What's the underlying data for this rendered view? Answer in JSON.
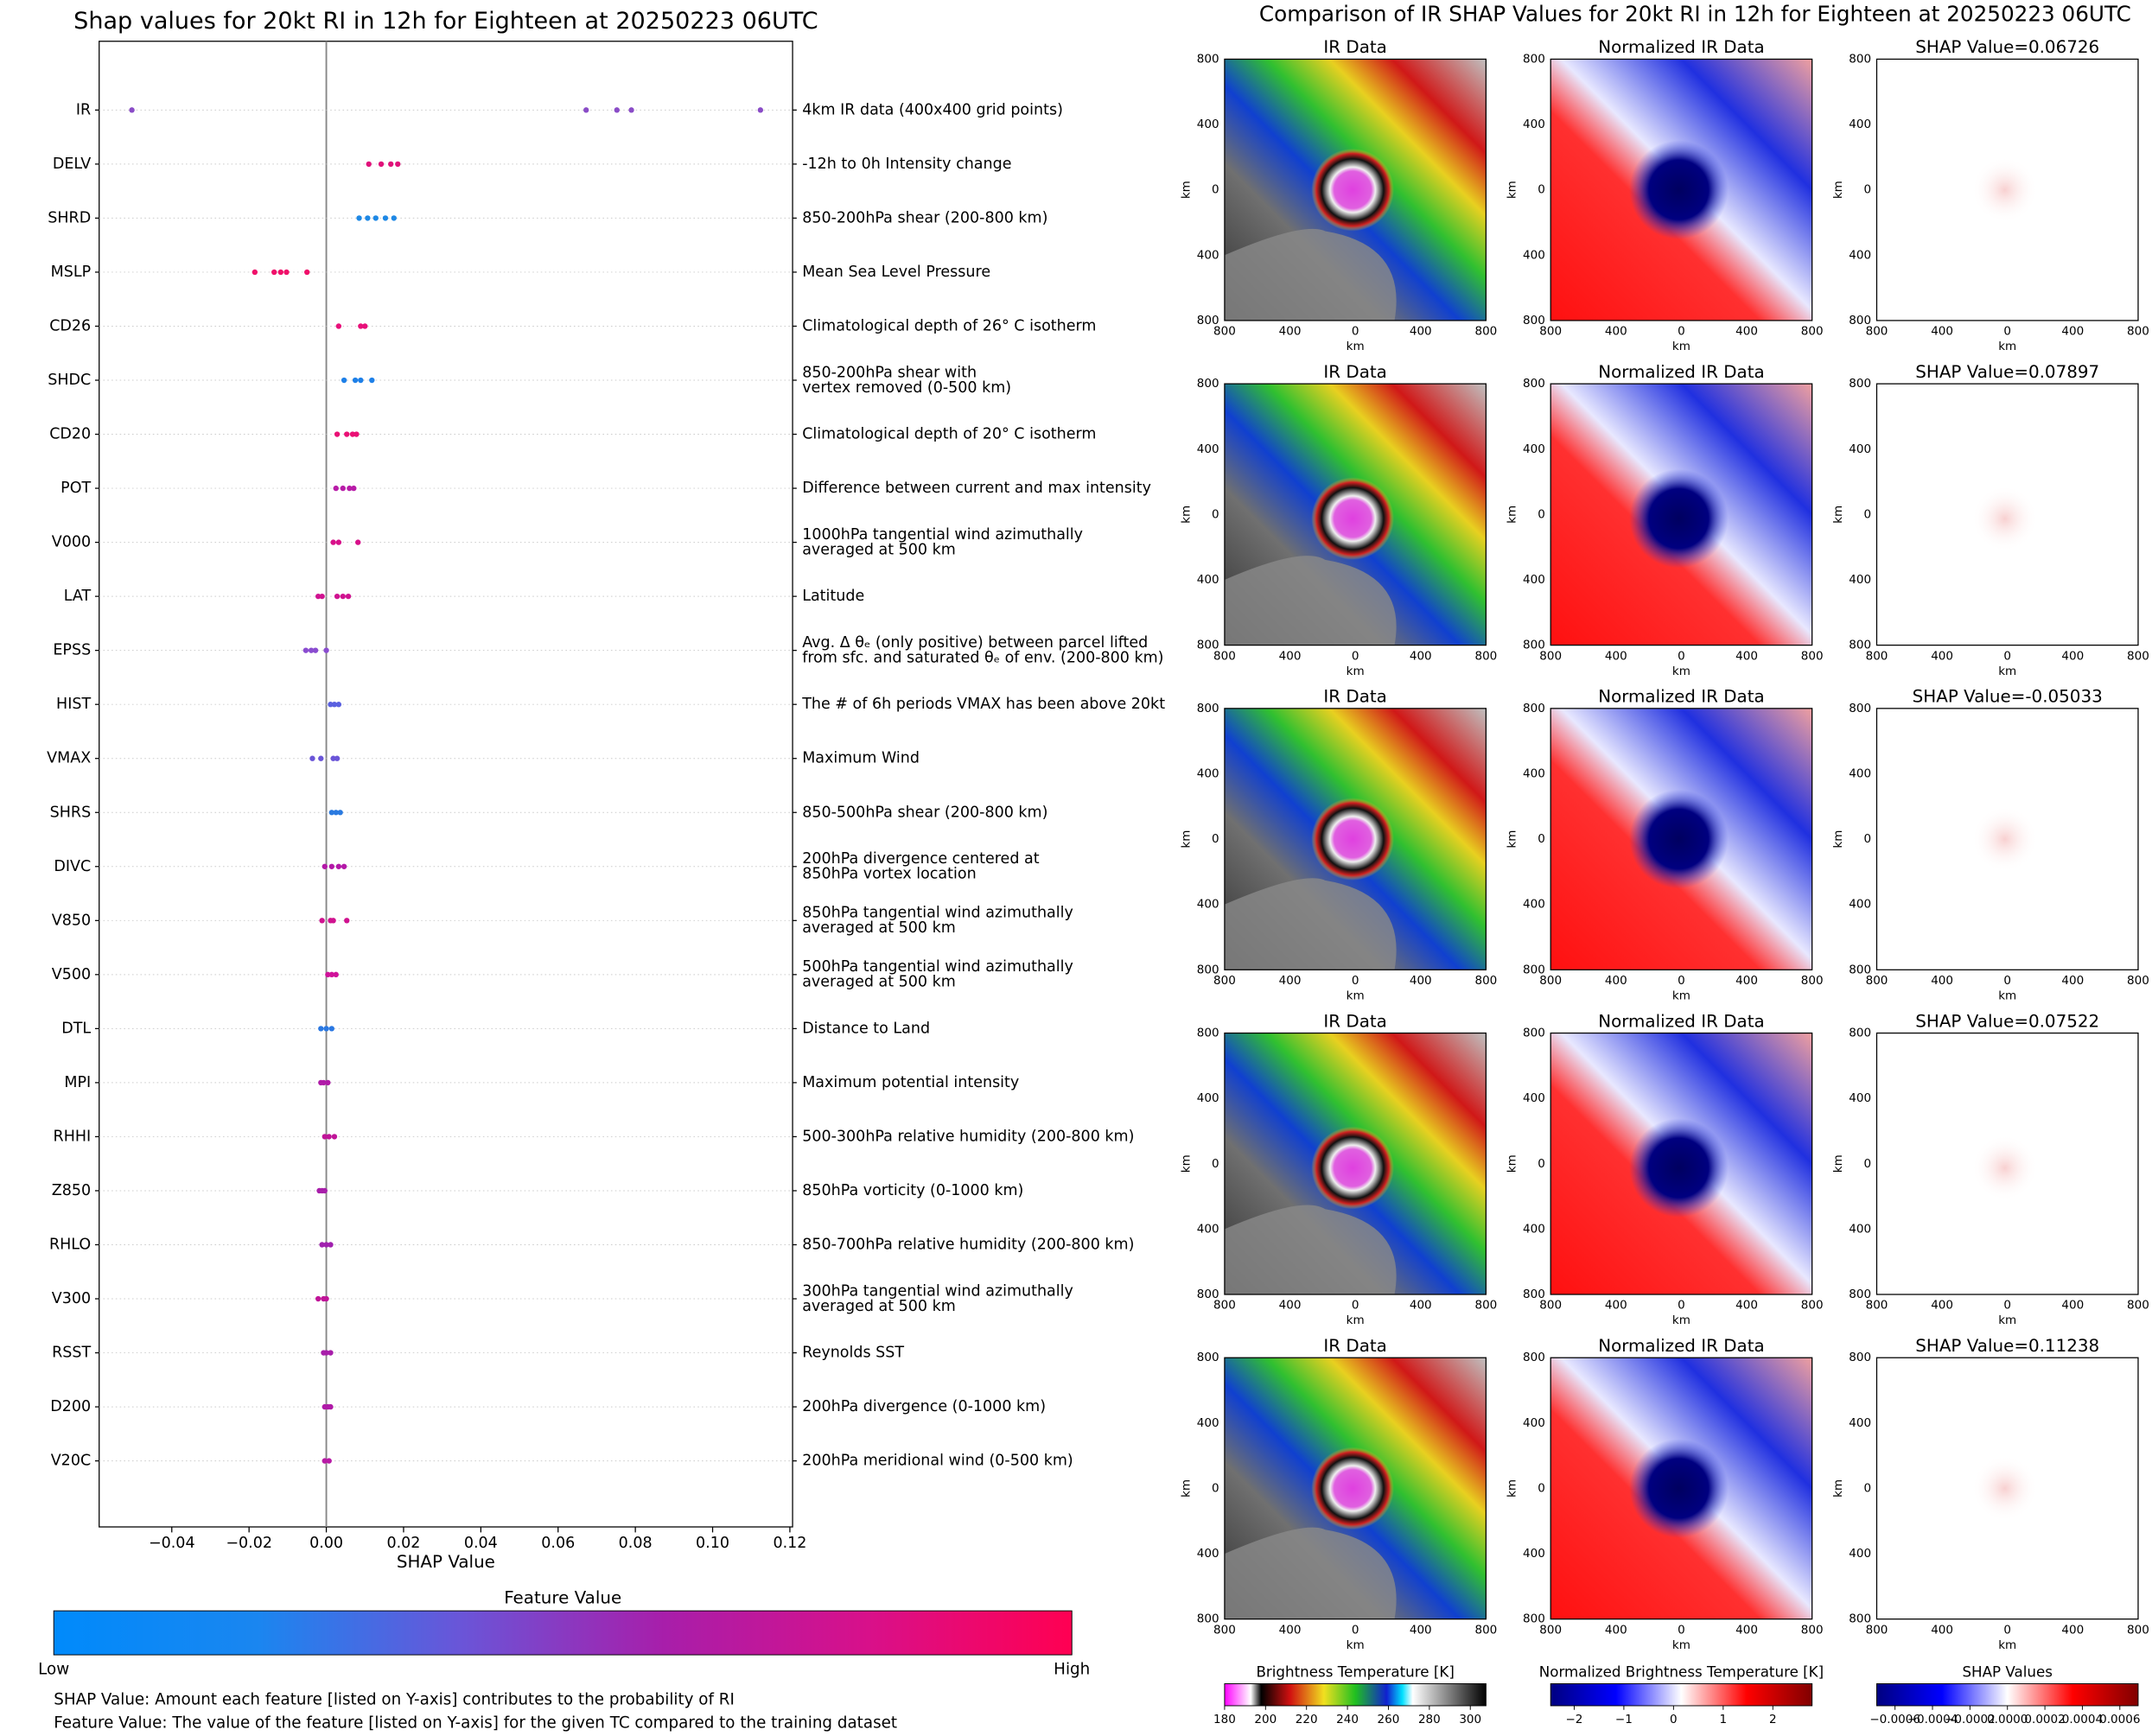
{
  "chart_data": {
    "type": "scatter",
    "title": "Shap values for 20kt RI in 12h for Eighteen at 20250223 06UTC",
    "x_label": "SHAP Value",
    "xlim": [
      -0.0588,
      0.1207
    ],
    "xticks": [
      {
        "value": -0.04,
        "label": "−0.04"
      },
      {
        "value": -0.02,
        "label": "−0.02"
      },
      {
        "value": 0,
        "label": "0.00"
      },
      0.02,
      0.04,
      0.06,
      0.08,
      {
        "value": 0.1,
        "label": "0.10"
      },
      0.12
    ],
    "zero_line": true,
    "series": [
      {
        "name": "IR",
        "description": [
          "4km IR data (400x400 grid points)"
        ],
        "color": "#8a4cc7",
        "values": [
          -0.05033,
          0.06726,
          0.07522,
          0.07897,
          0.11238
        ]
      },
      {
        "name": "DELV",
        "description": [
          "-12h to 0h Intensity change"
        ],
        "color": "#e0117a",
        "values": [
          0.011,
          0.0142,
          0.0167,
          0.0185
        ]
      },
      {
        "name": "SHRD",
        "description": [
          "850-200hPa shear (200-800 km)"
        ],
        "color": "#1e88e5",
        "values": [
          0.0085,
          0.0107,
          0.0128,
          0.0153,
          0.0175
        ]
      },
      {
        "name": "MSLP",
        "description": [
          "Mean Sea Level Pressure"
        ],
        "color": "#f0106a",
        "values": [
          -0.0185,
          -0.0135,
          -0.0118,
          -0.0103,
          -0.005
        ]
      },
      {
        "name": "CD26",
        "description": [
          "Climatological depth of 26° C isotherm"
        ],
        "color": "#e8107a",
        "values": [
          0.0032,
          0.0089,
          0.01
        ]
      },
      {
        "name": "SHDC",
        "description": [
          "850-200hPa shear with",
          "vertex removed (0-500 km)"
        ],
        "color": "#1e80e8",
        "values": [
          0.0046,
          0.0075,
          0.0089,
          0.0118
        ]
      },
      {
        "name": "CD20",
        "description": [
          "Climatological depth of 20° C isotherm"
        ],
        "color": "#ea1075",
        "values": [
          0.0028,
          0.0053,
          0.0068,
          0.0078
        ]
      },
      {
        "name": "POT",
        "description": [
          "Difference between current and max intensity"
        ],
        "color": "#b81ca8",
        "values": [
          0.0025,
          0.0043,
          0.006,
          0.0071
        ]
      },
      {
        "name": "V000",
        "description": [
          "1000hPa tangential wind azimuthally",
          "averaged at 500 km"
        ],
        "color": "#d8108a",
        "values": [
          0.0018,
          0.0032,
          0.0082
        ]
      },
      {
        "name": "LAT",
        "description": [
          "Latitude"
        ],
        "color": "#d01290",
        "values": [
          -0.0021,
          -0.0011,
          0.0028,
          0.0043,
          0.0057
        ]
      },
      {
        "name": "EPSS",
        "description": [
          "Avg. Δ θₑ (only positive) between parcel lifted",
          "from sfc. and saturated θₑ of env. (200-800 km)"
        ],
        "color": "#8a4cd0",
        "values": [
          -0.0053,
          -0.0039,
          -0.0028,
          0.0
        ]
      },
      {
        "name": "HIST",
        "description": [
          "The # of 6h periods VMAX has been above 20kt"
        ],
        "color": "#5a60e0",
        "values": [
          0.0011,
          0.0021,
          0.0032
        ]
      },
      {
        "name": "VMAX",
        "description": [
          "Maximum Wind"
        ],
        "color": "#6a55d8",
        "values": [
          -0.0036,
          -0.0014,
          0.0018,
          0.0028
        ]
      },
      {
        "name": "SHRS",
        "description": [
          "850-500hPa shear (200-800 km)"
        ],
        "color": "#2a7ae0",
        "values": [
          0.0014,
          0.0025,
          0.0036
        ]
      },
      {
        "name": "DIVC",
        "description": [
          "200hPa divergence centered at",
          "850hPa vortex location"
        ],
        "color": "#b418a8",
        "values": [
          -0.0004,
          0.0014,
          0.0032,
          0.0046
        ]
      },
      {
        "name": "V850",
        "description": [
          "850hPa tangential wind azimuthally",
          "averaged at 500 km"
        ],
        "color": "#d0128f",
        "values": [
          -0.0011,
          0.0011,
          0.0018,
          0.0053
        ]
      },
      {
        "name": "V500",
        "description": [
          "500hPa tangential wind azimuthally",
          "averaged at 500 km"
        ],
        "color": "#d0129a",
        "values": [
          0.0004,
          0.0014,
          0.0025
        ]
      },
      {
        "name": "DTL",
        "description": [
          "Distance to Land"
        ],
        "color": "#2a78e2",
        "values": [
          -0.0014,
          0.0,
          0.0014
        ]
      },
      {
        "name": "MPI",
        "description": [
          "Maximum potential intensity"
        ],
        "color": "#b01aa8",
        "values": [
          -0.0014,
          -0.0007,
          0.0004
        ]
      },
      {
        "name": "RHHI",
        "description": [
          "500-300hPa relative humidity (200-800 km)"
        ],
        "color": "#c01498",
        "values": [
          -0.0004,
          0.0007,
          0.0021
        ]
      },
      {
        "name": "Z850",
        "description": [
          "850hPa vorticity (0-1000 km)"
        ],
        "color": "#a81eaa",
        "values": [
          -0.0018,
          -0.0011,
          -0.0004
        ]
      },
      {
        "name": "RHLO",
        "description": [
          "850-700hPa relative humidity (200-800 km)"
        ],
        "color": "#a020ae",
        "values": [
          -0.0011,
          0.0,
          0.0011
        ]
      },
      {
        "name": "V300",
        "description": [
          "300hPa tangential wind azimuthally",
          "averaged at 500 km"
        ],
        "color": "#c01498",
        "values": [
          -0.0021,
          -0.0007,
          0.0
        ]
      },
      {
        "name": "RSST",
        "description": [
          "Reynolds SST"
        ],
        "color": "#a81eaa",
        "values": [
          -0.0007,
          0.0,
          0.0011
        ]
      },
      {
        "name": "D200",
        "description": [
          "200hPa divergence (0-1000 km)"
        ],
        "color": "#b01aa8",
        "values": [
          -0.0004,
          0.0004,
          0.0011
        ]
      },
      {
        "name": "V20C",
        "description": [
          "200hPa meridional wind (0-500 km)"
        ],
        "color": "#b81aa6",
        "values": [
          -0.0004,
          0.0007
        ]
      }
    ],
    "colorbar": {
      "title": "Feature Value",
      "low_label": "Low",
      "high_label": "High",
      "colors": [
        "#008afb",
        "#1a86f0",
        "#6a55d8",
        "#a81eaa",
        "#d8108a",
        "#ff0052"
      ]
    },
    "notes": [
      "SHAP Value: Amount each feature [listed on Y-axis] contributes to the probability of RI",
      "Feature Value: The value of the feature [listed on Y-axis] for the given TC compared to the training dataset"
    ]
  },
  "ir_figure": {
    "title": "Comparison of IR SHAP Values for 20kt RI in 12h for Eighteen at 20250223 06UTC",
    "rows": [
      {
        "titles": [
          "IR Data",
          "Normalized IR Data",
          "SHAP Value=0.06726"
        ]
      },
      {
        "titles": [
          "IR Data",
          "Normalized IR Data",
          "SHAP Value=0.07897"
        ]
      },
      {
        "titles": [
          "IR Data",
          "Normalized IR Data",
          "SHAP Value=-0.05033"
        ]
      },
      {
        "titles": [
          "IR Data",
          "Normalized IR Data",
          "SHAP Value=0.07522"
        ]
      },
      {
        "titles": [
          "IR Data",
          "Normalized IR Data",
          "SHAP Value=0.11238"
        ]
      }
    ],
    "axis_ticks": [
      "800",
      "400",
      "0",
      "400",
      "800"
    ],
    "axis_label": "km",
    "colorbars": [
      {
        "label": "Brightness Temperature [K]",
        "ticks": [
          "180",
          "200",
          "220",
          "240",
          "260",
          "280",
          "300"
        ]
      },
      {
        "label": "Normalized Brightness Temperature [K]",
        "ticks": [
          "−2",
          "−1",
          "0",
          "1",
          "2"
        ]
      },
      {
        "label": "SHAP Values",
        "ticks": [
          "−0.0006",
          "−0.0004",
          "−0.0002",
          "0.0000",
          "0.0002",
          "0.0004",
          "0.0006"
        ]
      }
    ]
  }
}
